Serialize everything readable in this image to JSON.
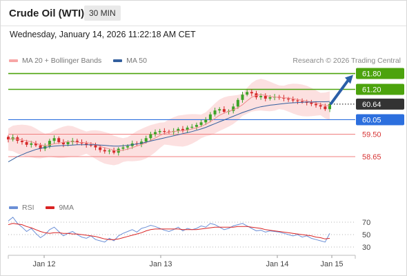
{
  "header": {
    "instrument": "Crude Oil (WTI)",
    "timeframe": "30 MIN"
  },
  "datetime": "Wednesday, January 14, 2026 11:22:18 AM CET",
  "legend": {
    "ma20_label": "MA 20 + Bollinger Bands",
    "ma50_label": "MA 50",
    "credit": "Research © 2026 Trading Central"
  },
  "rsi_legend": {
    "rsi_label": "RSI",
    "ma_label": "9MA"
  },
  "colors": {
    "resistance": "#4ca30d",
    "support": "#f07e7e",
    "pivot": "#2c6fde",
    "current": "#333333",
    "ma20_band": "#f7a6a6",
    "ma50": "#335f9e",
    "up_candle": "#3ea327",
    "down_candle": "#d62a2a",
    "rsi": "#6b8fd6",
    "rsi_ma": "#d92222",
    "arrow": "#2a5fa8"
  },
  "chart_data": {
    "type": "candlestick",
    "timeframe": "30 MIN",
    "x_ticks": [
      "Jan 12",
      "Jan 13",
      "Jan 14",
      "Jan 15"
    ],
    "levels": [
      {
        "label": "61.80",
        "value": 61.8,
        "kind": "resistance"
      },
      {
        "label": "61.20",
        "value": 61.2,
        "kind": "resistance"
      },
      {
        "label": "60.64",
        "value": 60.64,
        "kind": "current"
      },
      {
        "label": "60.05",
        "value": 60.05,
        "kind": "pivot"
      },
      {
        "label": "59.50",
        "value": 59.5,
        "kind": "support"
      },
      {
        "label": "58.65",
        "value": 58.65,
        "kind": "support"
      }
    ],
    "close_trend": [
      59.3,
      59.38,
      59.25,
      59.2,
      59.1,
      59.15,
      59.08,
      58.95,
      59.05,
      59.25,
      59.35,
      59.2,
      59.12,
      59.2,
      59.25,
      59.2,
      59.15,
      59.1,
      59.08,
      59.0,
      58.9,
      58.85,
      58.88,
      58.8,
      58.95,
      59.0,
      59.05,
      59.15,
      59.12,
      59.22,
      59.35,
      59.5,
      59.58,
      59.62,
      59.6,
      59.58,
      59.62,
      59.7,
      59.65,
      59.75,
      59.78,
      59.85,
      59.95,
      60.05,
      60.25,
      60.4,
      60.45,
      60.35,
      60.38,
      60.55,
      60.8,
      61.0,
      61.1,
      61.05,
      60.9,
      60.95,
      60.85,
      60.9,
      60.92,
      60.88,
      60.85,
      60.82,
      60.78,
      60.75,
      60.72,
      60.7,
      60.65,
      60.6,
      60.55,
      60.45,
      60.64
    ],
    "ma50_trend": [
      58.45,
      58.55,
      58.65,
      58.72,
      58.8,
      58.86,
      58.92,
      58.96,
      59.0,
      59.03,
      59.05,
      59.06,
      59.07,
      59.08,
      59.09,
      59.1,
      59.1,
      59.1,
      59.1,
      59.1,
      59.09,
      59.08,
      59.06,
      59.05,
      59.05,
      59.06,
      59.08,
      59.1,
      59.13,
      59.16,
      59.2,
      59.24,
      59.28,
      59.32,
      59.36,
      59.4,
      59.44,
      59.48,
      59.52,
      59.56,
      59.6,
      59.65,
      59.7,
      59.76,
      59.83,
      59.9,
      59.97,
      60.04,
      60.11,
      60.18,
      60.25,
      60.32,
      60.38,
      60.44,
      60.5,
      60.54,
      60.57,
      60.6,
      60.62,
      60.64,
      60.66,
      60.68,
      60.69,
      60.7,
      60.71,
      60.72,
      60.72,
      60.73,
      60.73,
      60.73,
      60.74
    ],
    "projection": {
      "from": 60.64,
      "to": 61.8
    },
    "rsi": {
      "ticks": [
        70,
        50,
        30
      ],
      "values": [
        72,
        78,
        68,
        62,
        55,
        60,
        52,
        45,
        50,
        58,
        62,
        55,
        48,
        52,
        55,
        50,
        46,
        44,
        48,
        42,
        40,
        38,
        44,
        40,
        48,
        52,
        55,
        58,
        54,
        60,
        62,
        65,
        63,
        60,
        57,
        55,
        58,
        62,
        56,
        60,
        58,
        60,
        64,
        62,
        68,
        66,
        62,
        58,
        60,
        64,
        66,
        68,
        64,
        60,
        56,
        57,
        54,
        56,
        55,
        54,
        52,
        50,
        48,
        50,
        46,
        48,
        44,
        42,
        40,
        38,
        52
      ],
      "ma_values": [
        66,
        68,
        67,
        66,
        63,
        61,
        58,
        55,
        53,
        52,
        53,
        53,
        52,
        52,
        51,
        51,
        50,
        49,
        48,
        47,
        45,
        43,
        42,
        42,
        43,
        45,
        47,
        49,
        51,
        53,
        56,
        58,
        59,
        59,
        59,
        59,
        59,
        59,
        58,
        58,
        58,
        58,
        59,
        60,
        61,
        62,
        62,
        62,
        62,
        62,
        63,
        63,
        63,
        62,
        61,
        60,
        58,
        57,
        56,
        55,
        54,
        53,
        52,
        51,
        50,
        49,
        48,
        46,
        45,
        43,
        44
      ]
    }
  }
}
